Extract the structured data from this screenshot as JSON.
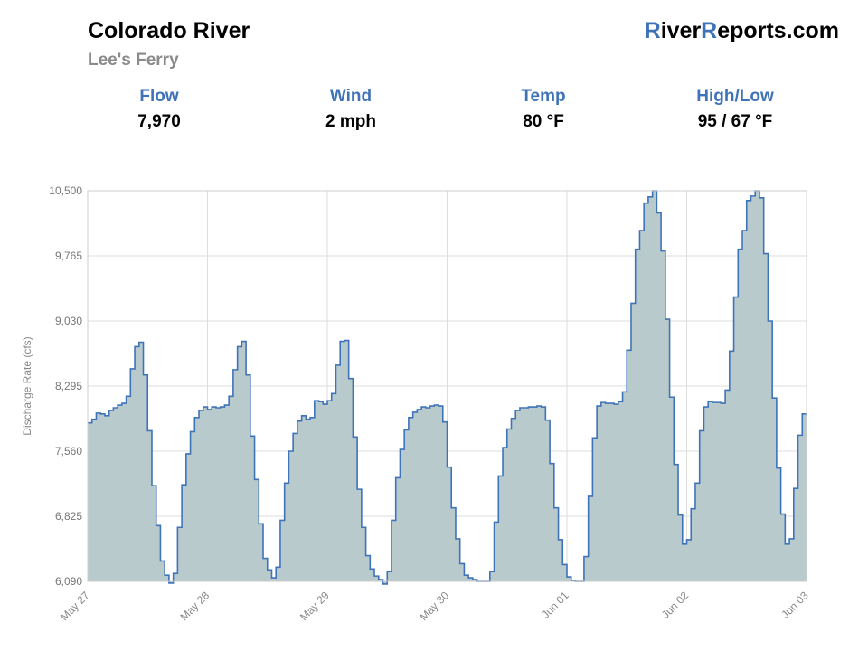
{
  "header": {
    "river": "Colorado River",
    "gauge": "Lee's Ferry",
    "brand_part1": "R",
    "brand_part2": "iver",
    "brand_part3": "R",
    "brand_part4": "eports.com"
  },
  "stats": [
    {
      "label": "Flow",
      "value": "7,970"
    },
    {
      "label": "Wind",
      "value": "2 mph"
    },
    {
      "label": "Temp",
      "value": "80 °F"
    },
    {
      "label": "High/Low",
      "value": "95 / 67 °F"
    }
  ],
  "colors": {
    "accent": "#3f73b8",
    "line": "#3f73b8",
    "fill": "#b9cacd",
    "grid": "#dddddd"
  },
  "chart_data": {
    "type": "area",
    "step": true,
    "ylabel": "Discharge Rate (cfs)",
    "ylim": [
      6090,
      10500
    ],
    "yticks": [
      6090,
      6825,
      7560,
      8295,
      9030,
      9765,
      10500
    ],
    "ytick_labels": [
      "6,090",
      "6,825",
      "7,560",
      "8,295",
      "9,030",
      "9,765",
      "10,500"
    ],
    "xlim": [
      0,
      6
    ],
    "xticks": [
      0,
      1,
      2,
      3,
      4,
      5,
      6
    ],
    "xtick_labels": [
      "May 27",
      "May 28",
      "May 29",
      "May 30",
      "Jun 01",
      "Jun 02",
      "Jun 03"
    ],
    "grid": true,
    "series": [
      {
        "values": [
          7880,
          7920,
          7990,
          7980,
          7960,
          8020,
          8050,
          8080,
          8100,
          8180,
          8490,
          8740,
          8790,
          8420,
          7790,
          7170,
          6720,
          6320,
          6160,
          6070,
          6180,
          6700,
          7180,
          7530,
          7780,
          7940,
          8020,
          8060,
          8030,
          8060,
          8050,
          8060,
          8080,
          8180,
          8480,
          8740,
          8800,
          8420,
          7730,
          7240,
          6740,
          6350,
          6220,
          6130,
          6250,
          6780,
          7200,
          7560,
          7760,
          7900,
          7960,
          7920,
          7940,
          8130,
          8120,
          8090,
          8130,
          8210,
          8530,
          8800,
          8810,
          8380,
          7720,
          7130,
          6700,
          6380,
          6230,
          6150,
          6110,
          6060,
          6200,
          6780,
          7260,
          7580,
          7800,
          7940,
          8000,
          8030,
          8060,
          8050,
          8070,
          8080,
          8070,
          7890,
          7380,
          6920,
          6570,
          6290,
          6160,
          6130,
          6110,
          6090,
          6090,
          6090,
          6200,
          6760,
          7280,
          7600,
          7810,
          7930,
          8020,
          8050,
          8050,
          8060,
          8060,
          8070,
          8060,
          7910,
          7420,
          6920,
          6560,
          6280,
          6140,
          6100,
          6090,
          6090,
          6370,
          7050,
          7710,
          8070,
          8110,
          8100,
          8100,
          8090,
          8120,
          8230,
          8700,
          9230,
          9840,
          10050,
          10360,
          10430,
          10500,
          10250,
          9820,
          9050,
          8170,
          7410,
          6840,
          6510,
          6560,
          6910,
          7200,
          7790,
          8060,
          8120,
          8110,
          8110,
          8100,
          8250,
          8690,
          9300,
          9840,
          10050,
          10390,
          10440,
          10500,
          10420,
          9790,
          9030,
          8160,
          7370,
          6850,
          6510,
          6570,
          7140,
          7740,
          7980
        ]
      }
    ]
  }
}
